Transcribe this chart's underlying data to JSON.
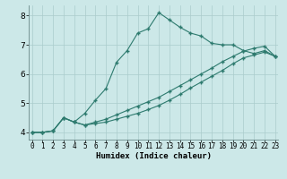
{
  "xlabel": "Humidex (Indice chaleur)",
  "bg_color": "#cce8e8",
  "line_color": "#2d7a6e",
  "grid_color": "#aacccc",
  "spine_color": "#6a8a8a",
  "xlim_min": -0.3,
  "xlim_max": 23.3,
  "ylim_min": 3.75,
  "ylim_max": 8.35,
  "yticks": [
    4,
    5,
    6,
    7,
    8
  ],
  "xticks": [
    0,
    1,
    2,
    3,
    4,
    5,
    6,
    7,
    8,
    9,
    10,
    11,
    12,
    13,
    14,
    15,
    16,
    17,
    18,
    19,
    20,
    21,
    22,
    23
  ],
  "series1": [
    4.0,
    4.0,
    4.05,
    4.5,
    4.35,
    4.65,
    5.1,
    5.5,
    6.4,
    6.8,
    7.4,
    7.55,
    8.1,
    7.85,
    7.6,
    7.4,
    7.3,
    7.05,
    7.0,
    7.0,
    6.8,
    6.7,
    6.8,
    6.6
  ],
  "series2": [
    4.0,
    4.0,
    4.05,
    4.5,
    4.35,
    4.25,
    4.3,
    4.35,
    4.45,
    4.55,
    4.65,
    4.78,
    4.92,
    5.1,
    5.3,
    5.52,
    5.72,
    5.92,
    6.12,
    6.35,
    6.55,
    6.65,
    6.75,
    6.6
  ],
  "series3": [
    4.0,
    4.0,
    4.05,
    4.5,
    4.35,
    4.25,
    4.35,
    4.45,
    4.6,
    4.75,
    4.9,
    5.05,
    5.2,
    5.4,
    5.6,
    5.8,
    6.0,
    6.2,
    6.42,
    6.6,
    6.78,
    6.88,
    6.95,
    6.6
  ]
}
